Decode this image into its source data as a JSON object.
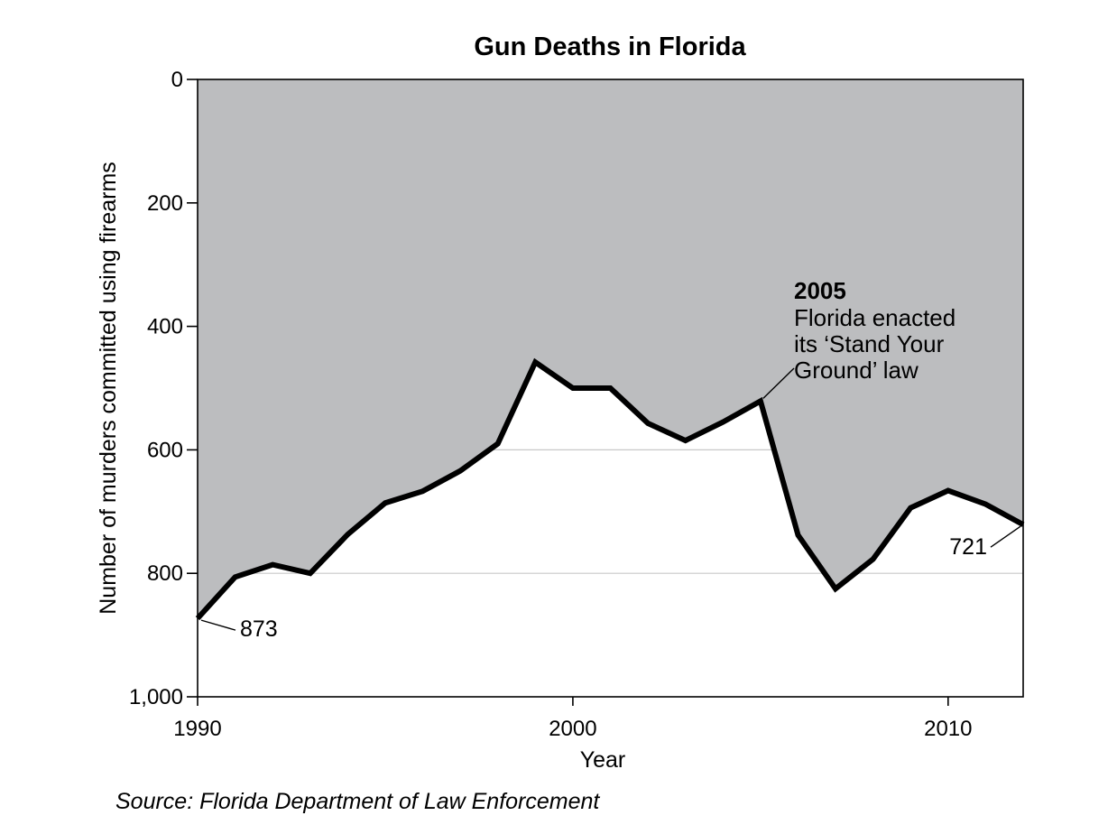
{
  "chart_data": {
    "type": "area",
    "title": "Gun Deaths in Florida",
    "xlabel": "Year",
    "ylabel": "Number of murders committed using firearms",
    "source": "Source: Florida Department of Law Enforcement",
    "x_ticks": [
      "1990",
      "2000",
      "2010"
    ],
    "y_ticks": [
      "0",
      "200",
      "400",
      "600",
      "800",
      "1,000"
    ],
    "xlim": [
      1990,
      2012
    ],
    "ylim": [
      0,
      1000
    ],
    "y_inverted": true,
    "grid": {
      "horizontal_lines_at": [
        600,
        800
      ],
      "visible_only_below_line": true
    },
    "fill_color": "#bcbdbf",
    "line_color": "#000000",
    "series": [
      {
        "x": [
          1990,
          1991,
          1992,
          1993,
          1994,
          1995,
          1996,
          1997,
          1998,
          1999,
          2000,
          2001,
          2002,
          2003,
          2004,
          2005,
          2006,
          2007,
          2008,
          2009,
          2010,
          2011,
          2012
        ],
        "values": [
          873,
          806,
          786,
          800,
          737,
          686,
          667,
          634,
          590,
          458,
          500,
          500,
          557,
          585,
          555,
          521,
          738,
          825,
          777,
          694,
          666,
          688,
          721
        ]
      }
    ],
    "data_labels": [
      {
        "x": 1990,
        "text": "873"
      },
      {
        "x": 2012,
        "text": "721"
      }
    ],
    "annotation": {
      "x": 2005,
      "year": "2005",
      "lines": [
        "Florida enacted",
        "its ‘Stand Your",
        "Ground’ law"
      ]
    }
  }
}
